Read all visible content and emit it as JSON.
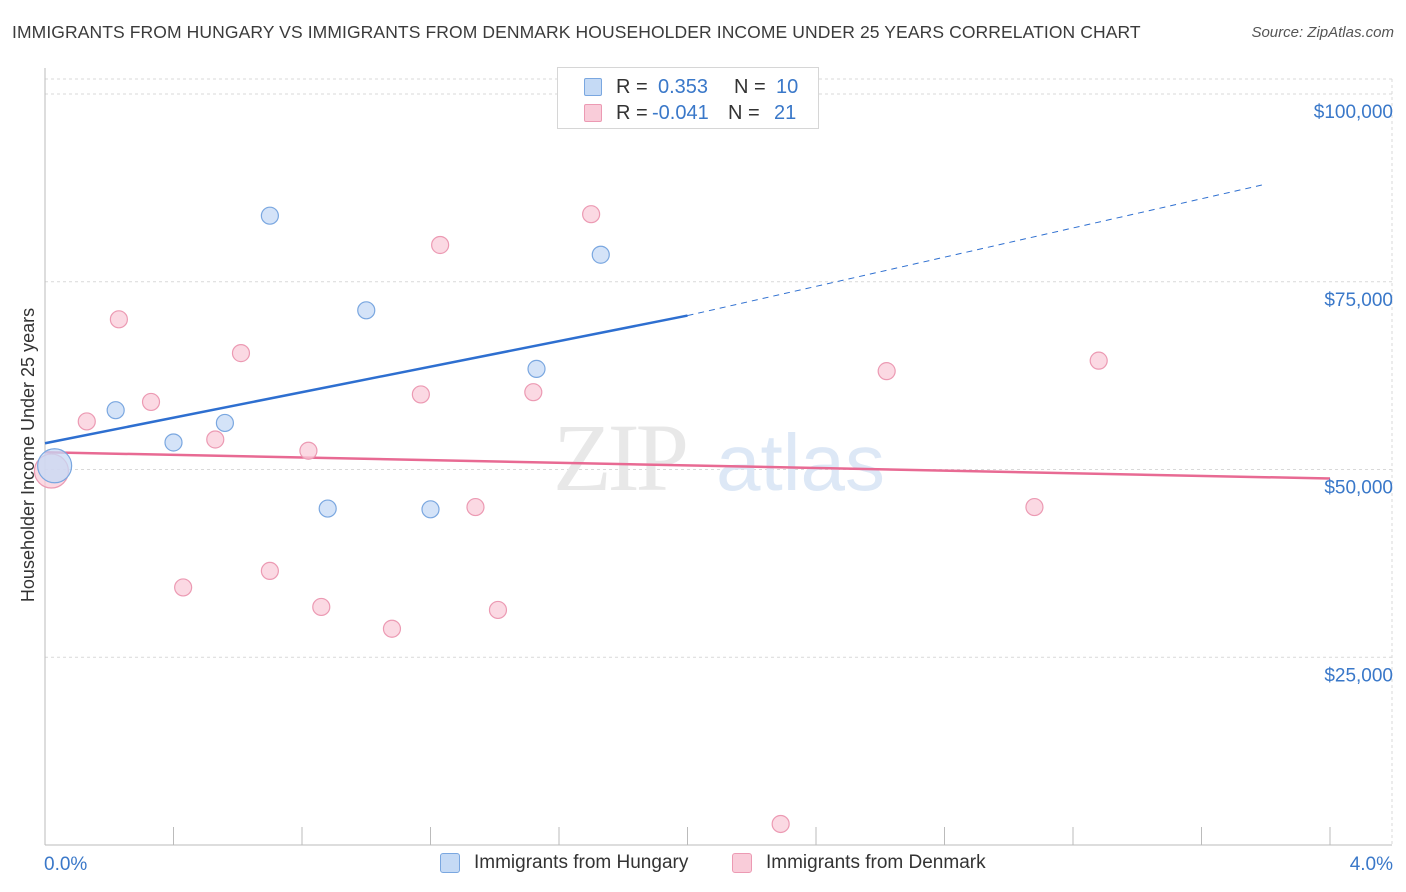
{
  "title": "IMMIGRANTS FROM HUNGARY VS IMMIGRANTS FROM DENMARK HOUSEHOLDER INCOME UNDER 25 YEARS CORRELATION CHART",
  "source": "Source: ZipAtlas.com",
  "watermark": {
    "zip": "ZIP",
    "atlas": "atlas"
  },
  "legend": {
    "rows": [
      {
        "r_label": "R =",
        "r_value": "0.353",
        "n_label": "N =",
        "n_value": "10",
        "color": "#a9c8f0"
      },
      {
        "r_label": "R =",
        "r_value": "-0.041",
        "n_label": "N =",
        "n_value": "21",
        "color": "#f5b5c8"
      }
    ]
  },
  "bottom_legend": {
    "hungary": "Immigrants from Hungary",
    "denmark": "Immigrants from Denmark"
  },
  "colors": {
    "hungary_fill": "#c5daf5",
    "hungary_stroke": "#7aa7e0",
    "hungary_line": "#2e6fd0",
    "denmark_fill": "#f9ccd9",
    "denmark_stroke": "#ec9ab3",
    "denmark_line": "#e86a93",
    "tick": "#3a78c9",
    "grid": "#d9d9d9"
  },
  "chart_data": {
    "type": "scatter",
    "title": "IMMIGRANTS FROM HUNGARY VS IMMIGRANTS FROM DENMARK HOUSEHOLDER INCOME UNDER 25 YEARS CORRELATION CHART",
    "xlabel": "",
    "ylabel": "Householder Income Under 25 years",
    "xlim": [
      0,
      4.0
    ],
    "ylim": [
      0,
      104000
    ],
    "x_tick_labels": [
      "0.0%",
      "4.0%"
    ],
    "y_ticks": [
      25000,
      50000,
      75000,
      100000
    ],
    "y_tick_labels": [
      "$25,000",
      "$50,000",
      "$75,000",
      "$100,000"
    ],
    "series": [
      {
        "name": "Immigrants from Hungary",
        "points": [
          {
            "x": 0.03,
            "y": 50500,
            "size": "large"
          },
          {
            "x": 0.22,
            "y": 57900
          },
          {
            "x": 0.4,
            "y": 53600
          },
          {
            "x": 0.56,
            "y": 56200
          },
          {
            "x": 0.7,
            "y": 83800
          },
          {
            "x": 0.88,
            "y": 44800
          },
          {
            "x": 1.0,
            "y": 71200
          },
          {
            "x": 1.2,
            "y": 44700
          },
          {
            "x": 1.53,
            "y": 63400
          },
          {
            "x": 1.73,
            "y": 78600
          }
        ],
        "trend": {
          "x_start": 0.0,
          "y_start": 53500,
          "x_solid_end": 2.0,
          "y_solid_end": 70500,
          "x_end": 3.8,
          "y_end": 88000
        }
      },
      {
        "name": "Immigrants from Denmark",
        "points": [
          {
            "x": 0.02,
            "y": 49800,
            "size": "large"
          },
          {
            "x": 0.13,
            "y": 56400
          },
          {
            "x": 0.23,
            "y": 70000
          },
          {
            "x": 0.33,
            "y": 59000
          },
          {
            "x": 0.43,
            "y": 34300
          },
          {
            "x": 0.53,
            "y": 54000
          },
          {
            "x": 0.61,
            "y": 65500
          },
          {
            "x": 0.7,
            "y": 36500
          },
          {
            "x": 0.82,
            "y": 52500
          },
          {
            "x": 0.86,
            "y": 31700
          },
          {
            "x": 1.08,
            "y": 28800
          },
          {
            "x": 1.17,
            "y": 60000
          },
          {
            "x": 1.23,
            "y": 79900
          },
          {
            "x": 1.34,
            "y": 45000
          },
          {
            "x": 1.41,
            "y": 31300
          },
          {
            "x": 1.52,
            "y": 60300
          },
          {
            "x": 1.7,
            "y": 84000
          },
          {
            "x": 2.29,
            "y": 2800
          },
          {
            "x": 2.62,
            "y": 63100
          },
          {
            "x": 3.08,
            "y": 45000
          },
          {
            "x": 3.28,
            "y": 64500
          }
        ],
        "trend": {
          "x_start": 0.0,
          "y_start": 52300,
          "x_end": 4.0,
          "y_end": 48800
        }
      }
    ]
  }
}
